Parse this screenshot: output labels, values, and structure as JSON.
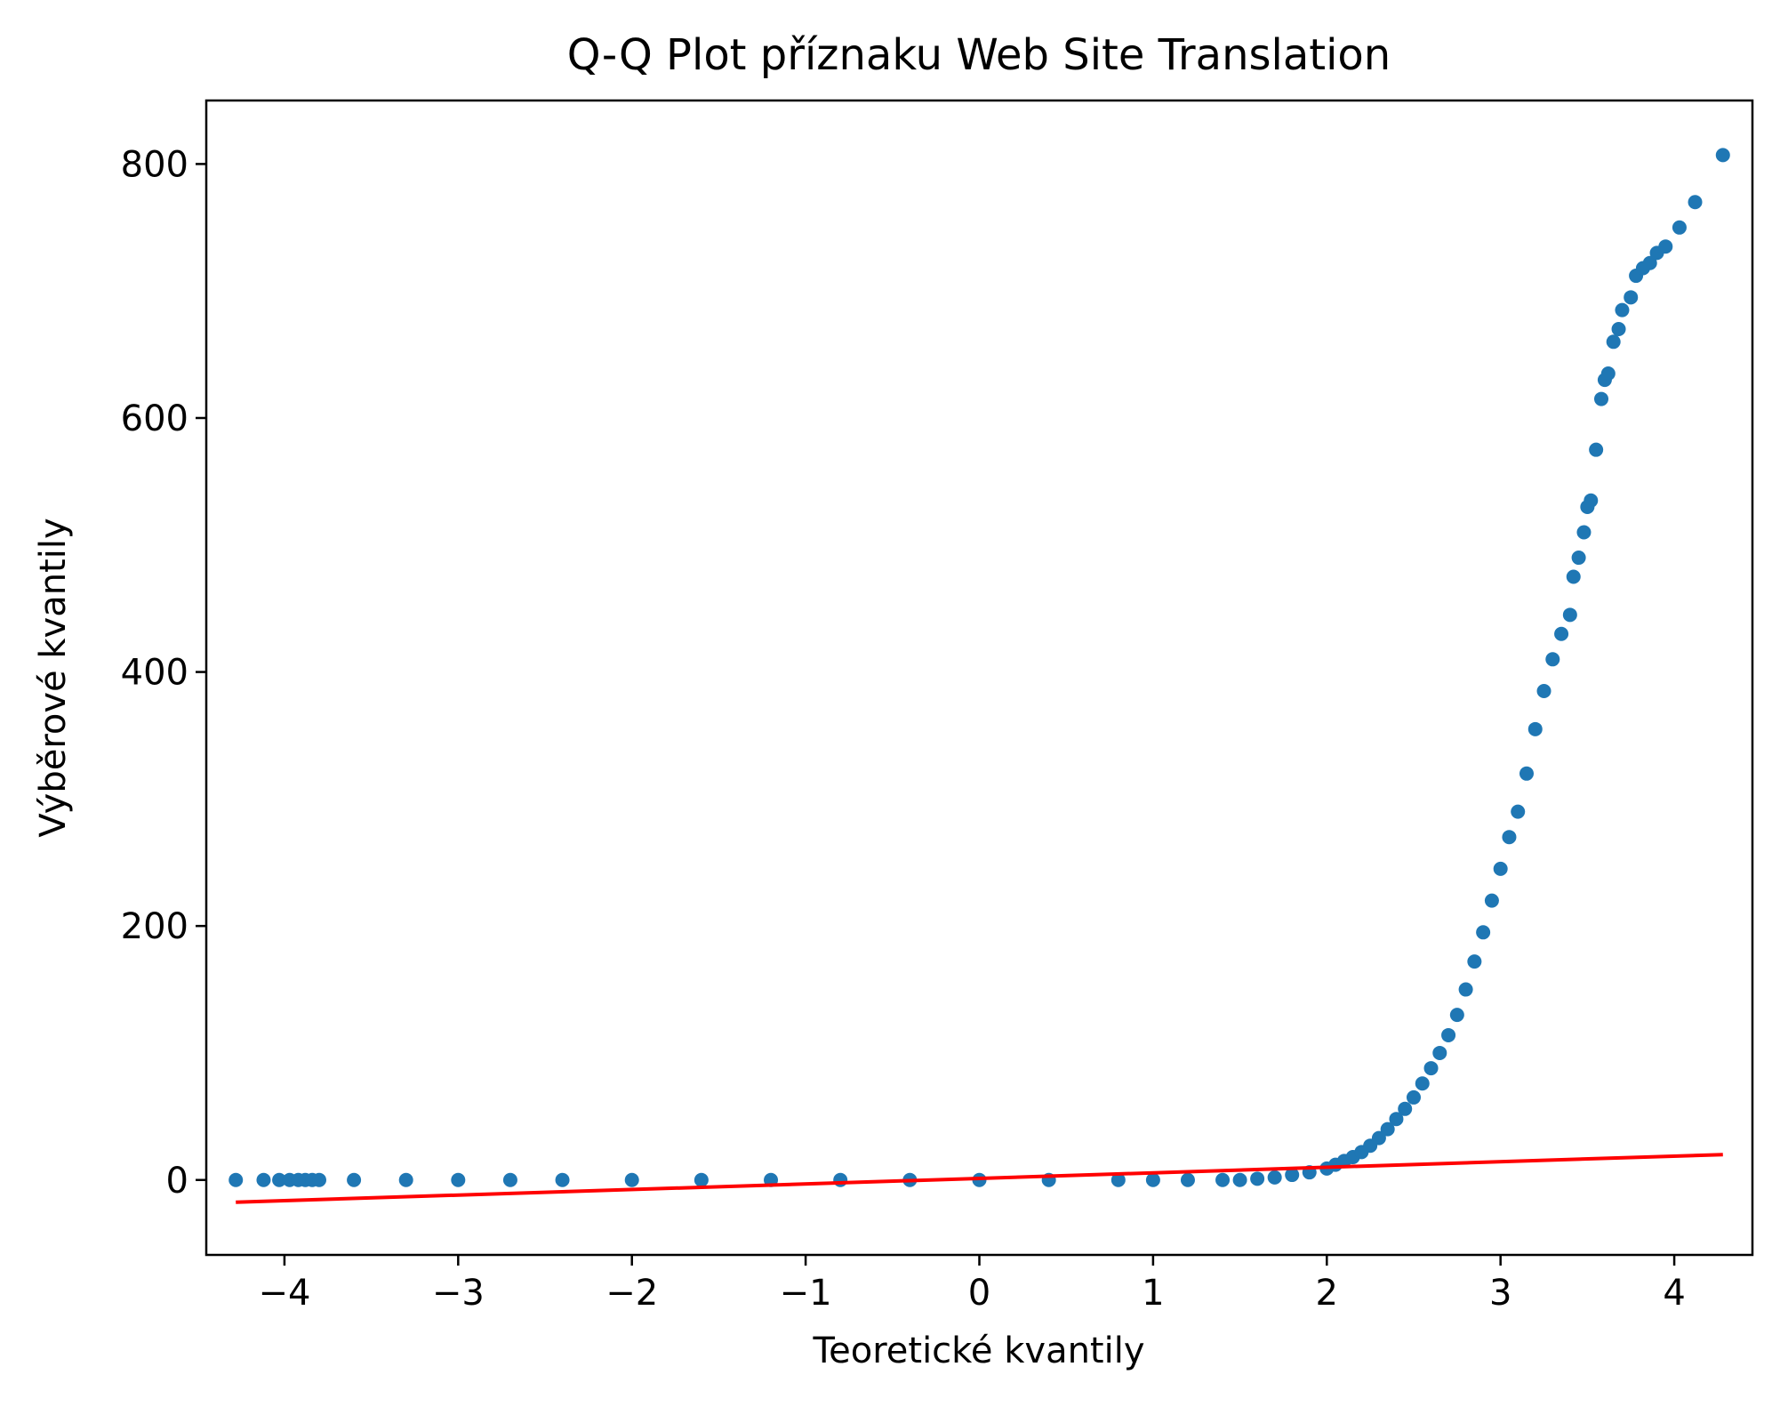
{
  "chart_data": {
    "type": "scatter",
    "title": "Q-Q Plot příznaku Web Site Translation",
    "xlabel": "Teoretické kvantily",
    "ylabel": "Výběrové kvantily",
    "xlim": [
      -4.45,
      4.45
    ],
    "ylim": [
      -59,
      850
    ],
    "x_ticks": [
      -4,
      -3,
      -2,
      -1,
      0,
      1,
      2,
      3,
      4
    ],
    "x_tick_labels": [
      "−4",
      "−3",
      "−2",
      "−1",
      "0",
      "1",
      "2",
      "3",
      "4"
    ],
    "y_ticks": [
      0,
      200,
      400,
      600,
      800
    ],
    "y_tick_labels": [
      "0",
      "200",
      "400",
      "600",
      "800"
    ],
    "grid": false,
    "colors": {
      "points": "#1f77b4",
      "fit_line": "#ff0000",
      "axes": "#000000"
    },
    "series": [
      {
        "kind": "points",
        "x": [
          -4.28,
          -4.12,
          -4.03,
          -3.97,
          -3.92,
          -3.88,
          -3.84,
          -3.8,
          -3.6,
          -3.3,
          -3.0,
          -2.7,
          -2.4,
          -2.0,
          -1.6,
          -1.2,
          -0.8,
          -0.4,
          0.0,
          0.4,
          0.8,
          1.0,
          1.2,
          1.4,
          1.5,
          1.6,
          1.7,
          1.8,
          1.9,
          2.0,
          2.05,
          2.1,
          2.15,
          2.2,
          2.25,
          2.3,
          2.35,
          2.4,
          2.45,
          2.5,
          2.55,
          2.6,
          2.65,
          2.7,
          2.75,
          2.8,
          2.85,
          2.9,
          2.95,
          3.0,
          3.05,
          3.1,
          3.15,
          3.2,
          3.25,
          3.3,
          3.35,
          3.4,
          3.42,
          3.45,
          3.48,
          3.5,
          3.52,
          3.55,
          3.58,
          3.6,
          3.62,
          3.65,
          3.68,
          3.7,
          3.75,
          3.78,
          3.82,
          3.86,
          3.9,
          3.95,
          4.03,
          4.12,
          4.28
        ],
        "y": [
          0,
          0,
          0,
          0,
          0,
          0,
          0,
          0,
          0,
          0,
          0,
          0,
          0,
          0,
          0,
          0,
          0,
          0,
          0,
          0,
          0,
          0,
          0,
          0,
          0,
          1,
          2,
          4,
          6,
          9,
          12,
          15,
          18,
          22,
          27,
          33,
          40,
          48,
          56,
          65,
          76,
          88,
          100,
          114,
          130,
          150,
          172,
          195,
          220,
          245,
          270,
          290,
          320,
          355,
          385,
          410,
          430,
          445,
          475,
          490,
          510,
          530,
          535,
          575,
          615,
          630,
          635,
          660,
          670,
          685,
          695,
          712,
          718,
          722,
          730,
          735,
          750,
          770,
          807
        ]
      },
      {
        "kind": "line",
        "x": [
          -4.28,
          4.28
        ],
        "y": [
          -17.5,
          20
        ]
      }
    ]
  }
}
